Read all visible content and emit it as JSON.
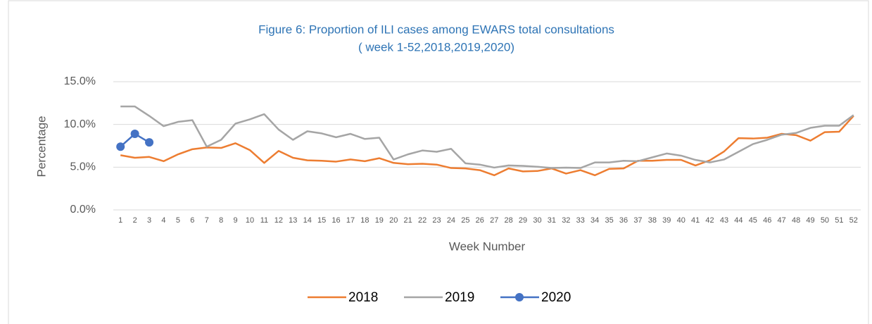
{
  "chart_data": {
    "type": "line",
    "title": "Figure 6: Proportion of ILI cases among EWARS total consultations",
    "subtitle": "( week 1-52,2018,2019,2020)",
    "y_label": "Percentage",
    "x_label": "Week Number",
    "categories": [
      "1",
      "2",
      "3",
      "4",
      "5",
      "6",
      "7",
      "8",
      "9",
      "10",
      "11",
      "12",
      "13",
      "14",
      "15",
      "16",
      "17",
      "18",
      "19",
      "20",
      "21",
      "22",
      "23",
      "24",
      "25",
      "26",
      "27",
      "28",
      "29",
      "30",
      "31",
      "32",
      "33",
      "34",
      "35",
      "36",
      "37",
      "38",
      "39",
      "40",
      "41",
      "42",
      "43",
      "44",
      "45",
      "46",
      "47",
      "48",
      "49",
      "50",
      "51",
      "52"
    ],
    "series": [
      {
        "name": "2018",
        "color": "#ed7d31",
        "marker": false,
        "values": [
          6.4,
          6.1,
          6.2,
          5.7,
          6.5,
          7.1,
          7.3,
          7.25,
          7.8,
          7.0,
          5.5,
          6.9,
          6.1,
          5.8,
          5.75,
          5.65,
          5.9,
          5.7,
          6.05,
          5.5,
          5.35,
          5.4,
          5.3,
          4.9,
          4.85,
          4.65,
          4.05,
          4.85,
          4.5,
          4.55,
          4.85,
          4.25,
          4.65,
          4.05,
          4.8,
          4.85,
          5.75,
          5.75,
          5.85,
          5.85,
          5.2,
          5.8,
          6.85,
          8.4,
          8.35,
          8.45,
          8.9,
          8.75,
          8.1,
          9.1,
          9.15,
          11.0
        ]
      },
      {
        "name": "2019",
        "color": "#a5a5a5",
        "marker": false,
        "values": [
          12.1,
          12.1,
          11.0,
          9.8,
          10.3,
          10.5,
          7.4,
          8.2,
          10.1,
          10.6,
          11.2,
          9.4,
          8.2,
          9.2,
          8.95,
          8.5,
          8.9,
          8.3,
          8.45,
          5.9,
          6.5,
          6.95,
          6.8,
          7.15,
          5.45,
          5.3,
          4.95,
          5.2,
          5.15,
          5.05,
          4.9,
          4.95,
          4.9,
          5.55,
          5.55,
          5.75,
          5.7,
          6.15,
          6.6,
          6.35,
          5.85,
          5.55,
          5.9,
          6.8,
          7.7,
          8.2,
          8.8,
          9.0,
          9.6,
          9.85,
          9.85,
          11.1
        ]
      },
      {
        "name": "2020",
        "color": "#4472c4",
        "marker": true,
        "values": [
          7.4,
          8.9,
          7.9,
          null,
          null,
          null,
          null,
          null,
          null,
          null,
          null,
          null,
          null,
          null,
          null,
          null,
          null,
          null,
          null,
          null,
          null,
          null,
          null,
          null,
          null,
          null,
          null,
          null,
          null,
          null,
          null,
          null,
          null,
          null,
          null,
          null,
          null,
          null,
          null,
          null,
          null,
          null,
          null,
          null,
          null,
          null,
          null,
          null,
          null,
          null,
          null,
          null
        ]
      }
    ],
    "ylim": [
      0,
      15
    ],
    "yticks": [
      {
        "value": 0,
        "label": "0.0%"
      },
      {
        "value": 5,
        "label": "5.0%"
      },
      {
        "value": 10,
        "label": "10.0%"
      },
      {
        "value": 15,
        "label": "15.0%"
      }
    ],
    "grid": true,
    "legend": "bottom"
  }
}
